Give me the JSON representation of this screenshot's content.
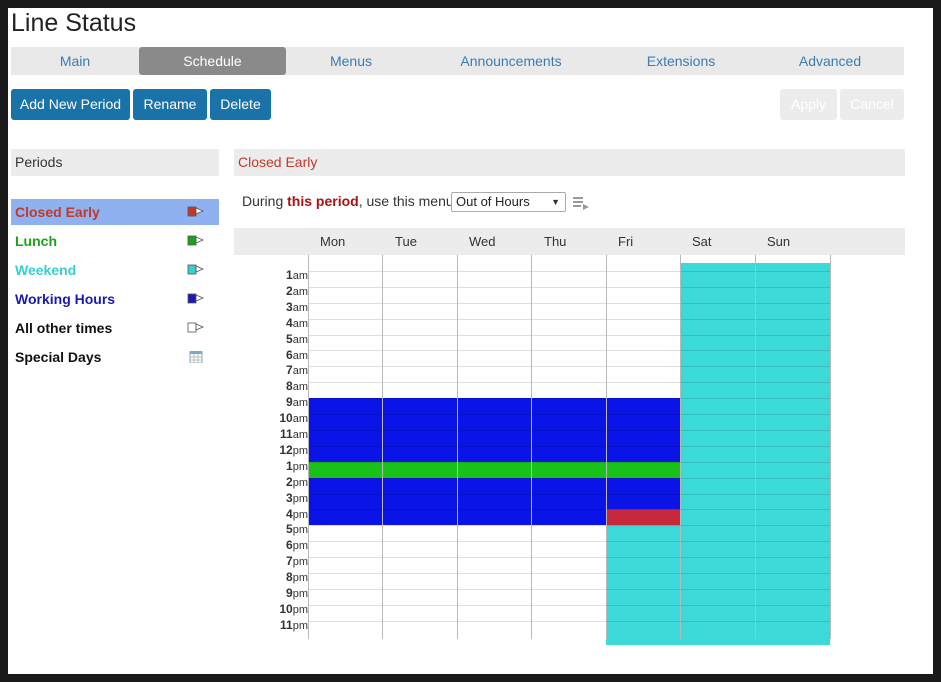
{
  "title": "Line Status",
  "tabs": [
    "Main",
    "Schedule",
    "Menus",
    "Announcements",
    "Extensions",
    "Advanced"
  ],
  "active_tab": "Schedule",
  "buttons": {
    "add": "Add New Period",
    "rename": "Rename",
    "delete": "Delete",
    "apply": "Apply",
    "cancel": "Cancel"
  },
  "sidebar": {
    "header": "Periods",
    "items": [
      {
        "label": "Closed Early",
        "color": "#c0392b",
        "icon": "flag-red-icon"
      },
      {
        "label": "Lunch",
        "color": "#1aa31a",
        "icon": "flag-green-icon"
      },
      {
        "label": "Weekend",
        "color": "#37cfcf",
        "icon": "flag-cyan-icon"
      },
      {
        "label": "Working Hours",
        "color": "#1a1ab0",
        "icon": "flag-blue-icon"
      },
      {
        "label": "All other times",
        "color": "#111111",
        "icon": "flag-white-icon"
      },
      {
        "label": "Special Days",
        "color": "#111111",
        "icon": "calendar-icon"
      }
    ]
  },
  "main": {
    "header": "Closed Early",
    "menu_prefix": "During ",
    "menu_highlight": "this period",
    "menu_suffix": ", use this menu:",
    "menu_value": "Out of Hours"
  },
  "schedule": {
    "days": [
      "Mon",
      "Tue",
      "Wed",
      "Thu",
      "Fri",
      "Sat",
      "Sun"
    ],
    "hour_labels": [
      {
        "n": "1",
        "s": "am"
      },
      {
        "n": "2",
        "s": "am"
      },
      {
        "n": "3",
        "s": "am"
      },
      {
        "n": "4",
        "s": "am"
      },
      {
        "n": "5",
        "s": "am"
      },
      {
        "n": "6",
        "s": "am"
      },
      {
        "n": "7",
        "s": "am"
      },
      {
        "n": "8",
        "s": "am"
      },
      {
        "n": "9",
        "s": "am"
      },
      {
        "n": "10",
        "s": "am"
      },
      {
        "n": "11",
        "s": "am"
      },
      {
        "n": "12",
        "s": "pm"
      },
      {
        "n": "1",
        "s": "pm"
      },
      {
        "n": "2",
        "s": "pm"
      },
      {
        "n": "3",
        "s": "pm"
      },
      {
        "n": "4",
        "s": "pm"
      },
      {
        "n": "5",
        "s": "pm"
      },
      {
        "n": "6",
        "s": "pm"
      },
      {
        "n": "7",
        "s": "pm"
      },
      {
        "n": "8",
        "s": "pm"
      },
      {
        "n": "9",
        "s": "pm"
      },
      {
        "n": "10",
        "s": "pm"
      },
      {
        "n": "11",
        "s": "pm"
      }
    ],
    "colors": {
      "working": "#0a14e6",
      "lunch": "#19c219",
      "weekend": "#3cd9d9",
      "closed_early": "#c8283c"
    }
  }
}
